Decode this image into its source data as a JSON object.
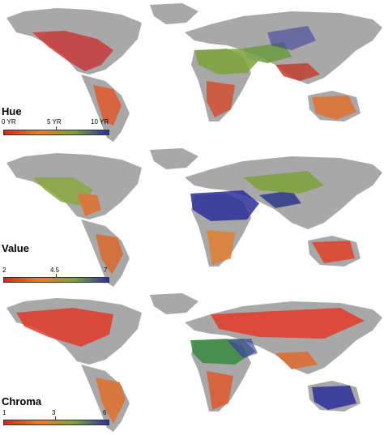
{
  "figure": {
    "panels": [
      {
        "id": "hue",
        "legend_title": "Hue",
        "ticks": [
          "0 YR",
          "5 YR",
          "10 YR"
        ],
        "colors": [
          "#e81e1e",
          "#f07a2a",
          "#7da23a",
          "#2d2f9a"
        ]
      },
      {
        "id": "value",
        "legend_title": "Value",
        "ticks": [
          "2",
          "4.5",
          "7"
        ],
        "colors": [
          "#e81e1e",
          "#f07a2a",
          "#7da23a",
          "#2d2f9a"
        ]
      },
      {
        "id": "chroma",
        "legend_title": "Chroma",
        "ticks": [
          "1",
          "3",
          "6"
        ],
        "colors": [
          "#e81e1e",
          "#f07a2a",
          "#7da23a",
          "#2d2f9a"
        ]
      }
    ],
    "land_color": "#a8a8a8",
    "ocean_color": "#ffffff"
  }
}
